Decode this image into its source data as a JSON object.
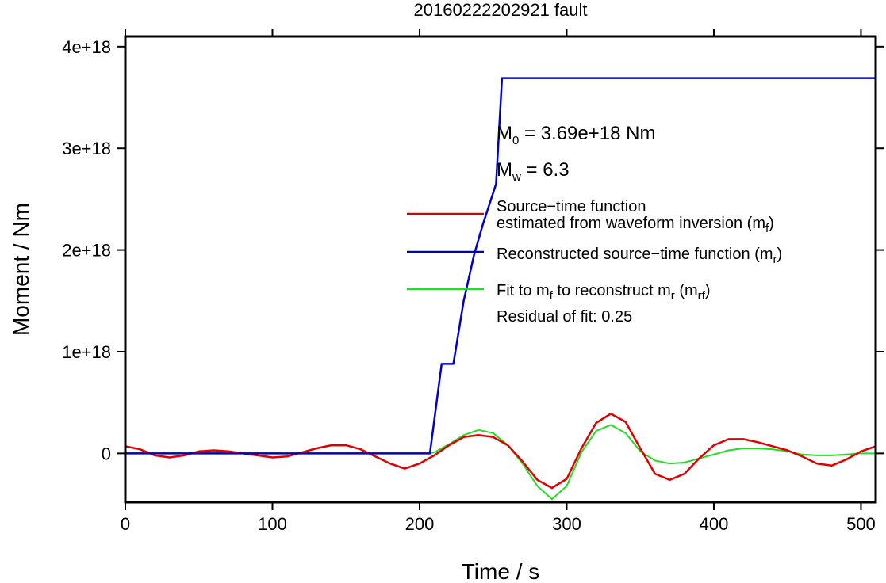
{
  "chart_data": {
    "type": "line",
    "title": "20160222202921 fault",
    "xlabel": "Time / s",
    "ylabel": "Moment / Nm",
    "xlim": [
      0,
      510
    ],
    "ylim": [
      -4.8e+17,
      4.1e+18
    ],
    "x_ticks": [
      0,
      100,
      200,
      300,
      400,
      500
    ],
    "x_tick_labels": [
      "0",
      "100",
      "200",
      "300",
      "400",
      "500"
    ],
    "y_ticks": [
      0,
      1e+18,
      2e+18,
      3e+18,
      4e+18
    ],
    "y_tick_labels": [
      "0",
      "1e+18",
      "2e+18",
      "3e+18",
      "4e+18"
    ],
    "grid": false,
    "legend_position": "right",
    "series": [
      {
        "name": "Source−time function estimated from waveform inversion (m_f)",
        "color": "#e00000",
        "x": [
          0,
          10,
          20,
          30,
          40,
          50,
          60,
          70,
          80,
          90,
          100,
          110,
          120,
          130,
          140,
          150,
          160,
          170,
          180,
          190,
          200,
          210,
          220,
          230,
          240,
          250,
          260,
          270,
          280,
          290,
          300,
          310,
          320,
          330,
          340,
          350,
          360,
          370,
          380,
          390,
          400,
          410,
          420,
          430,
          440,
          450,
          460,
          470,
          480,
          490,
          500,
          510
        ],
        "values": [
          7e+16,
          4e+16,
          -2e+16,
          -4e+16,
          -2e+16,
          2e+16,
          3e+16,
          2e+16,
          0,
          -2e+16,
          -4e+16,
          -3e+16,
          1e+16,
          5e+16,
          8e+16,
          8e+16,
          4e+16,
          -3e+16,
          -1e+17,
          -1.5e+17,
          -1e+17,
          -2e+16,
          8e+16,
          1.6e+17,
          1.8e+17,
          1.6e+17,
          8e+16,
          -8e+16,
          -2.6e+17,
          -3.4e+17,
          -2.5e+17,
          5e+16,
          3e+17,
          3.9e+17,
          3.1e+17,
          5e+16,
          -2e+17,
          -2.6e+17,
          -2e+17,
          -5e+16,
          8e+16,
          1.4e+17,
          1.4e+17,
          1.1e+17,
          7e+16,
          3e+16,
          -3e+16,
          -1e+17,
          -1.2e+17,
          -6e+16,
          2e+16,
          7e+16
        ]
      },
      {
        "name": "Reconstructed source−time function (m_r)",
        "color": "#0000cc",
        "x": [
          0,
          207,
          215,
          223,
          230,
          237,
          243,
          252,
          256,
          300,
          400,
          510
        ],
        "values": [
          0,
          0,
          8.8e+17,
          8.8e+17,
          1.5e+18,
          1.95e+18,
          2.25e+18,
          2.65e+18,
          3.69e+18,
          3.69e+18,
          3.69e+18,
          3.69e+18
        ]
      },
      {
        "name": "Fit to m_f to reconstruct m_r (m_rf)",
        "color": "#22dd22",
        "x": [
          0,
          200,
          205,
          210,
          220,
          230,
          240,
          250,
          260,
          270,
          280,
          290,
          300,
          310,
          320,
          330,
          340,
          350,
          360,
          370,
          380,
          390,
          400,
          410,
          420,
          430,
          440,
          450,
          460,
          470,
          480,
          490,
          500,
          510
        ],
        "values": [
          0,
          0,
          0,
          1e+16,
          9e+16,
          1.8e+17,
          2.3e+17,
          2e+17,
          8e+16,
          -1e+17,
          -3.2e+17,
          -4.5e+17,
          -3.2e+17,
          1e+16,
          2.2e+17,
          2.8e+17,
          2e+17,
          2e+16,
          -7e+16,
          -1e+17,
          -9e+16,
          -5e+16,
          -1e+16,
          3e+16,
          5e+16,
          5e+16,
          4e+16,
          2e+16,
          -1e+16,
          -2e+16,
          -2e+16,
          -1e+16,
          0,
          0
        ]
      }
    ],
    "legend": [
      {
        "line1": "Source−time function",
        "line2_main": "estimated from waveform inversion (m",
        "line2_sub": "f",
        "line2_end": ")",
        "color": "#e00000"
      },
      {
        "main": "Reconstructed source−time function (m",
        "sub": "r",
        "end": ")",
        "color": "#0000cc"
      },
      {
        "main": "Fit to m",
        "sub": "f",
        "mid": " to reconstruct m",
        "sub2": "r",
        "mid2": " (m",
        "sub3": "rf",
        "end": ")",
        "color": "#22dd22"
      }
    ],
    "annotations": {
      "m0_prefix": "M",
      "m0_sub": "0",
      "m0_text": " = 3.69e+18 Nm",
      "mw_prefix": "M",
      "mw_sub": "w",
      "mw_text": " = 6.3",
      "residual": "Residual of fit: 0.25"
    }
  }
}
